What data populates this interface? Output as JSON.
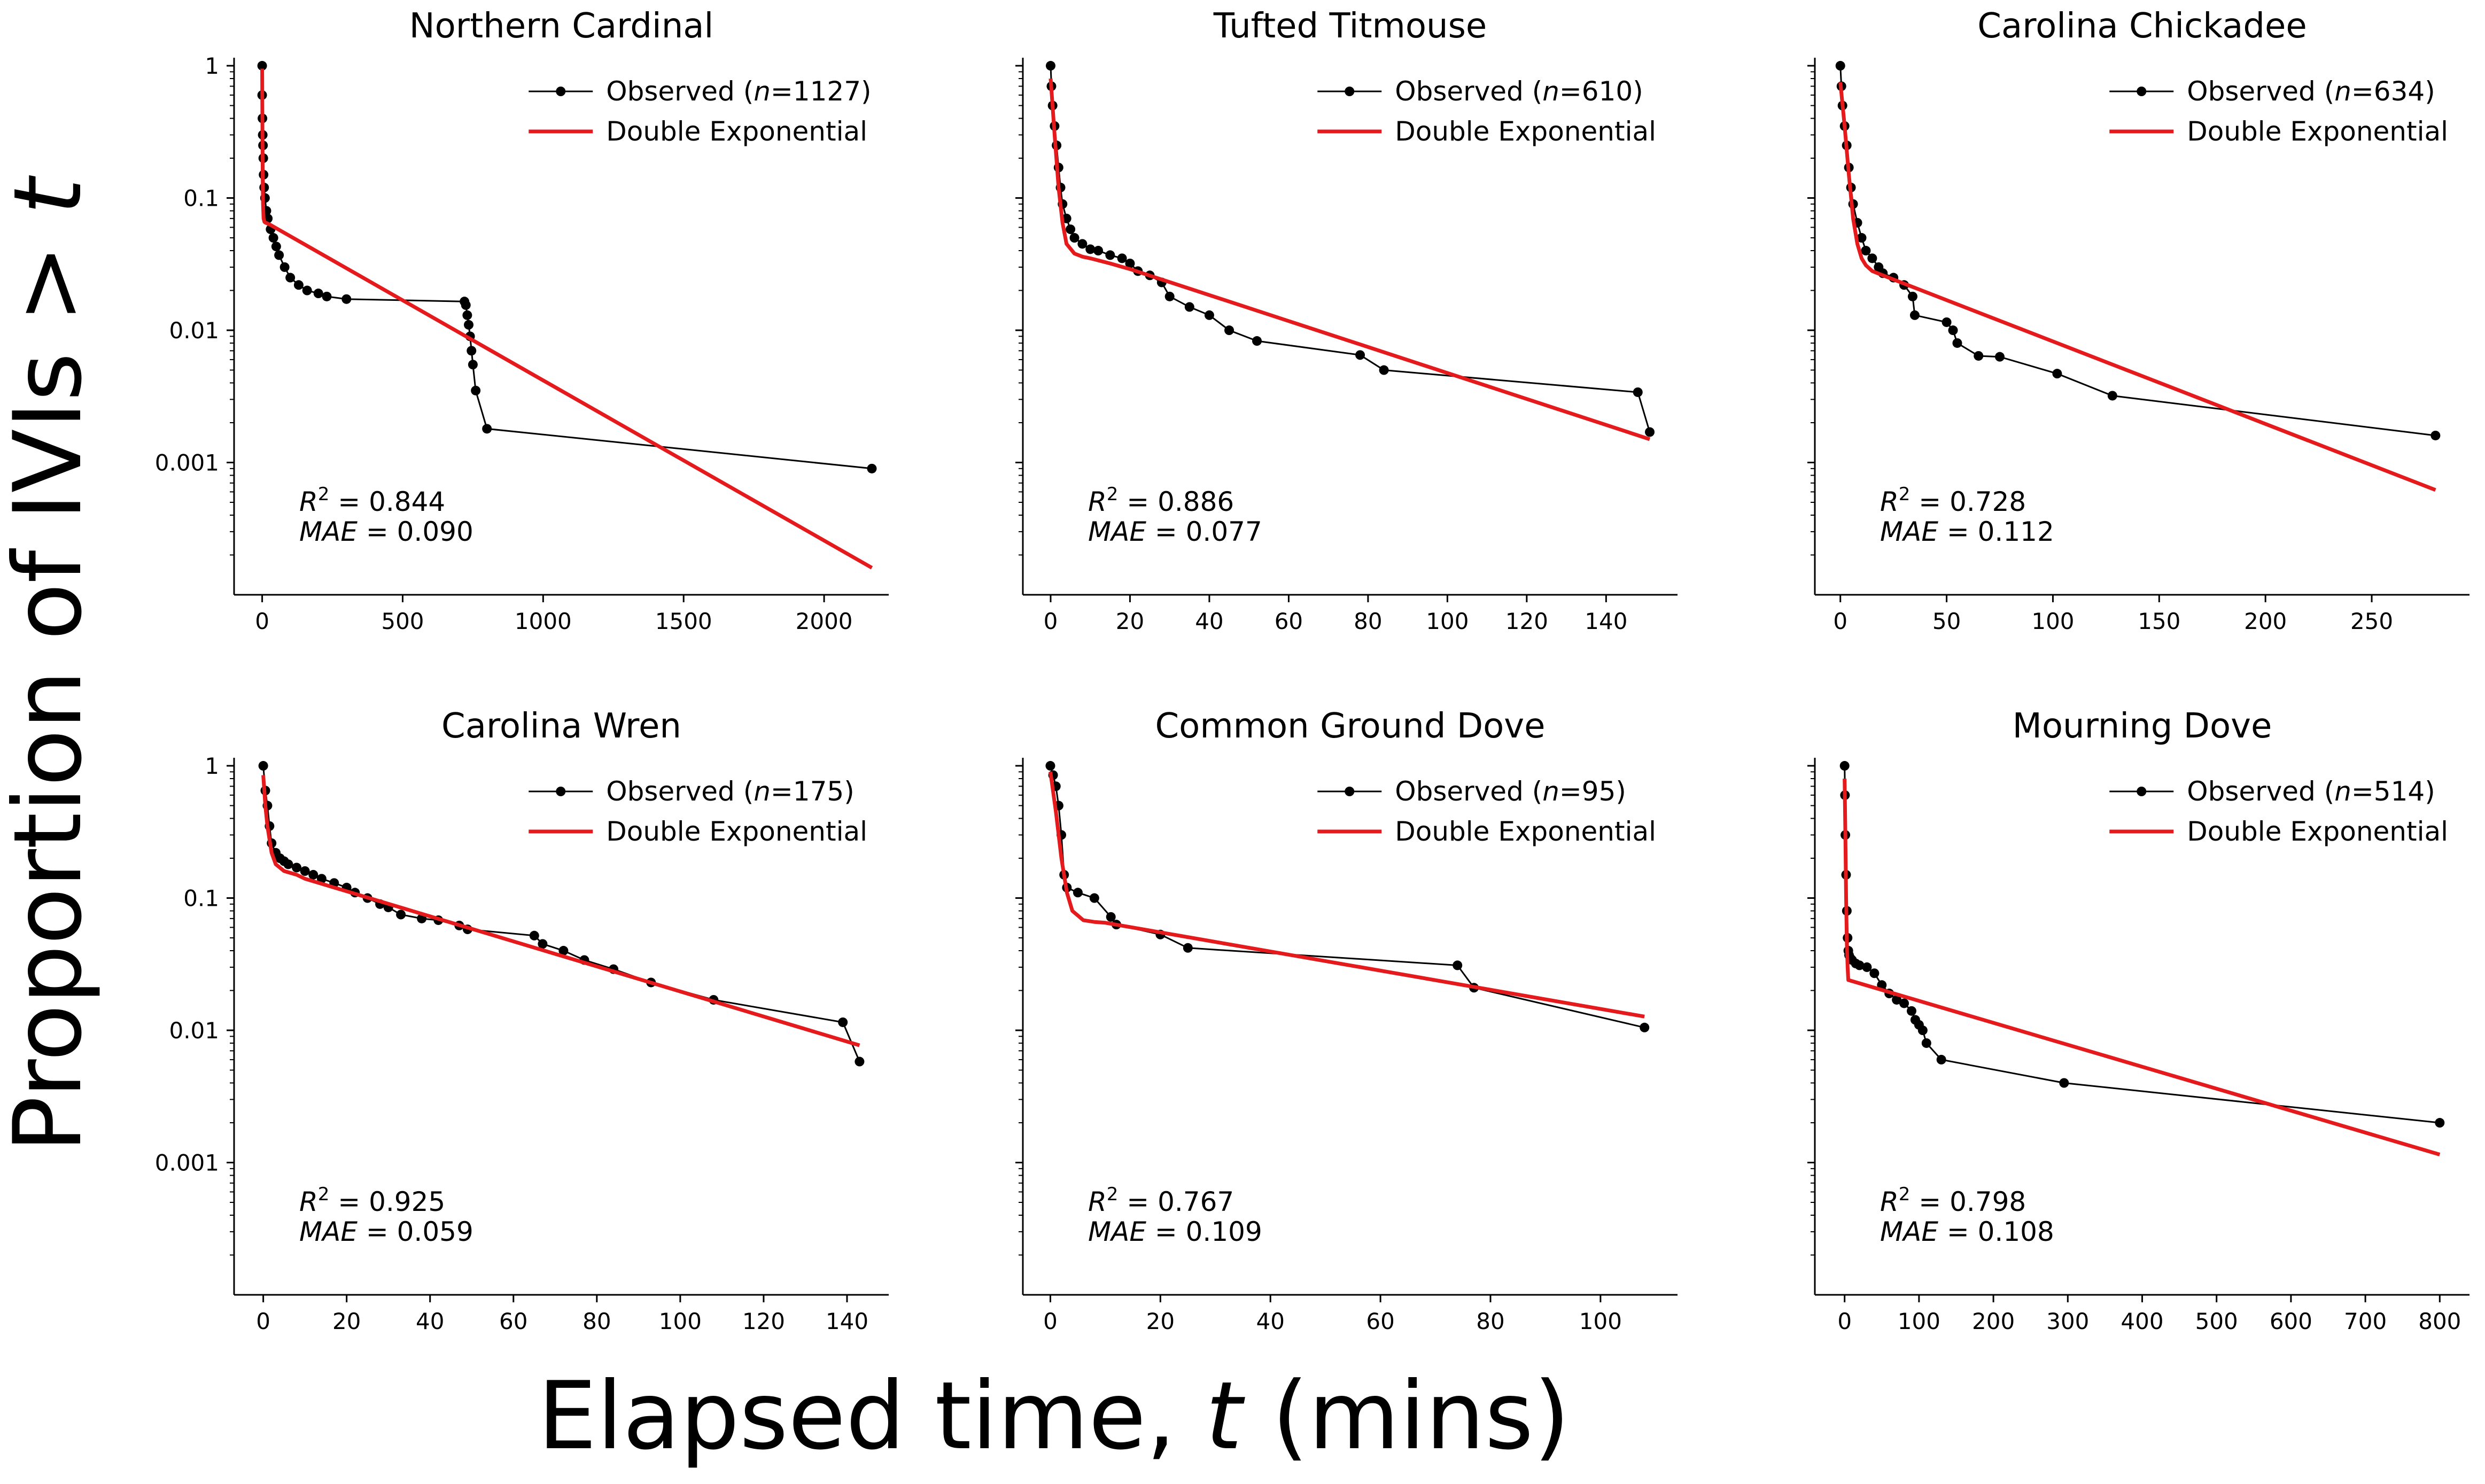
{
  "figure": {
    "xlabel_prefix": "Elapsed time, ",
    "xlabel_var": "t",
    "xlabel_suffix": " (mins)",
    "ylabel_prefix": "Proportion of IVIs > ",
    "ylabel_var": "t",
    "legend_observed_prefix": "Observed (",
    "legend_observed_n": "n",
    "legend_fit_label": "Double Exponential",
    "r2_symbol": "R",
    "r2_superscript": "2",
    "mae_symbol": "MAE",
    "equals": " = ",
    "colors": {
      "observed": "#000000",
      "fit": "#e41a1c"
    }
  },
  "chart_data": [
    {
      "type": "line",
      "title": "Northern Cardinal",
      "n": "1127",
      "r2": "0.844",
      "mae": "0.090",
      "xlim": [
        -100,
        2230
      ],
      "xticks": [
        0,
        500,
        1000,
        1500,
        2000
      ],
      "ylim": [
        0.0001,
        1.15
      ],
      "yscale": "log",
      "yticks": [
        {
          "v": 1,
          "label": "1"
        },
        {
          "v": 0.1,
          "label": "0.1"
        },
        {
          "v": 0.01,
          "label": "0.01"
        },
        {
          "v": 0.001,
          "label": "0.001"
        }
      ],
      "show_ytick_labels": true,
      "series": [
        {
          "name": "Observed",
          "x": [
            0,
            0,
            1,
            2,
            3,
            4,
            5,
            7,
            10,
            15,
            20,
            30,
            40,
            50,
            60,
            80,
            100,
            130,
            160,
            200,
            230,
            300,
            720,
            725,
            730,
            735,
            740,
            745,
            750,
            760,
            800,
            2170
          ],
          "y": [
            1.0,
            0.6,
            0.4,
            0.3,
            0.25,
            0.2,
            0.15,
            0.12,
            0.1,
            0.08,
            0.07,
            0.058,
            0.05,
            0.043,
            0.037,
            0.03,
            0.025,
            0.022,
            0.02,
            0.019,
            0.018,
            0.0172,
            0.0165,
            0.0155,
            0.013,
            0.011,
            0.009,
            0.007,
            0.0055,
            0.0035,
            0.0018,
            0.0009
          ]
        },
        {
          "name": "Double Exponential",
          "x": [
            0,
            0.5,
            1,
            2,
            3,
            5,
            8,
            12,
            20,
            30,
            2170
          ],
          "y": [
            0.95,
            0.55,
            0.33,
            0.14,
            0.09,
            0.07,
            0.066,
            0.065,
            0.064,
            0.0625,
            0.00016
          ]
        }
      ]
    },
    {
      "type": "line",
      "title": "Tufted Titmouse",
      "n": "610",
      "r2": "0.886",
      "mae": "0.077",
      "xlim": [
        -7,
        158
      ],
      "xticks": [
        0,
        20,
        40,
        60,
        80,
        100,
        120,
        140
      ],
      "ylim": [
        0.0001,
        1.15
      ],
      "yscale": "log",
      "yticks": [
        {
          "v": 1,
          "label": ""
        },
        {
          "v": 0.1,
          "label": ""
        },
        {
          "v": 0.01,
          "label": ""
        },
        {
          "v": 0.001,
          "label": ""
        }
      ],
      "show_ytick_labels": false,
      "series": [
        {
          "name": "Observed",
          "x": [
            0,
            0.2,
            0.5,
            1,
            1.5,
            2,
            2.5,
            3,
            4,
            5,
            6,
            8,
            10,
            12,
            15,
            18,
            20,
            22,
            25,
            28,
            30,
            35,
            40,
            45,
            52,
            78,
            84,
            148,
            151
          ],
          "y": [
            1.0,
            0.7,
            0.5,
            0.35,
            0.25,
            0.17,
            0.12,
            0.09,
            0.07,
            0.058,
            0.05,
            0.045,
            0.041,
            0.04,
            0.037,
            0.035,
            0.032,
            0.028,
            0.026,
            0.023,
            0.018,
            0.015,
            0.013,
            0.01,
            0.0083,
            0.0065,
            0.005,
            0.0034,
            0.0017
          ]
        },
        {
          "name": "Double Exponential",
          "x": [
            0,
            1,
            2,
            3,
            4,
            6,
            8,
            10,
            15,
            20,
            151
          ],
          "y": [
            0.8,
            0.3,
            0.12,
            0.065,
            0.045,
            0.038,
            0.036,
            0.035,
            0.032,
            0.029,
            0.0015
          ]
        }
      ]
    },
    {
      "type": "line",
      "title": "Carolina Chickadee",
      "n": "634",
      "r2": "0.728",
      "mae": "0.112",
      "xlim": [
        -12,
        296
      ],
      "xticks": [
        0,
        50,
        100,
        150,
        200,
        250
      ],
      "ylim": [
        0.0001,
        1.15
      ],
      "yscale": "log",
      "yticks": [
        {
          "v": 1,
          "label": ""
        },
        {
          "v": 0.1,
          "label": ""
        },
        {
          "v": 0.01,
          "label": ""
        },
        {
          "v": 0.001,
          "label": ""
        }
      ],
      "show_ytick_labels": false,
      "series": [
        {
          "name": "Observed",
          "x": [
            0,
            0.5,
            1,
            2,
            3,
            4,
            5,
            6,
            8,
            10,
            12,
            15,
            18,
            20,
            25,
            30,
            34,
            35,
            50,
            53,
            55,
            65,
            75,
            102,
            128,
            280
          ],
          "y": [
            1.0,
            0.7,
            0.5,
            0.35,
            0.25,
            0.17,
            0.12,
            0.09,
            0.065,
            0.05,
            0.04,
            0.035,
            0.03,
            0.027,
            0.025,
            0.022,
            0.018,
            0.013,
            0.0115,
            0.01,
            0.008,
            0.0064,
            0.0063,
            0.0047,
            0.0032,
            0.0016
          ]
        },
        {
          "name": "Double Exponential",
          "x": [
            0,
            2,
            4,
            6,
            8,
            10,
            12,
            15,
            20,
            280
          ],
          "y": [
            0.75,
            0.35,
            0.15,
            0.07,
            0.045,
            0.035,
            0.031,
            0.028,
            0.026,
            0.00062
          ]
        }
      ]
    },
    {
      "type": "line",
      "title": "Carolina Wren",
      "n": "175",
      "r2": "0.925",
      "mae": "0.059",
      "xlim": [
        -7,
        150
      ],
      "xticks": [
        0,
        20,
        40,
        60,
        80,
        100,
        120,
        140
      ],
      "ylim": [
        0.0001,
        1.15
      ],
      "yscale": "log",
      "yticks": [
        {
          "v": 1,
          "label": "1"
        },
        {
          "v": 0.1,
          "label": "0.1"
        },
        {
          "v": 0.01,
          "label": "0.01"
        },
        {
          "v": 0.001,
          "label": "0.001"
        }
      ],
      "show_ytick_labels": true,
      "series": [
        {
          "name": "Observed",
          "x": [
            0,
            0.5,
            1,
            1.5,
            2,
            3,
            4,
            5,
            6,
            8,
            10,
            12,
            14,
            17,
            20,
            22,
            25,
            28,
            30,
            33,
            38,
            42,
            47,
            49,
            65,
            67,
            72,
            77,
            84,
            93,
            108,
            139,
            143
          ],
          "y": [
            1.0,
            0.65,
            0.5,
            0.35,
            0.26,
            0.22,
            0.2,
            0.19,
            0.18,
            0.17,
            0.16,
            0.15,
            0.14,
            0.13,
            0.12,
            0.11,
            0.1,
            0.09,
            0.085,
            0.075,
            0.07,
            0.068,
            0.062,
            0.058,
            0.052,
            0.045,
            0.04,
            0.034,
            0.029,
            0.023,
            0.017,
            0.0115,
            0.0058
          ]
        },
        {
          "name": "Double Exponential",
          "x": [
            0,
            0.5,
            1,
            2,
            3,
            5,
            8,
            10,
            143
          ],
          "y": [
            0.85,
            0.5,
            0.35,
            0.22,
            0.18,
            0.16,
            0.15,
            0.14,
            0.0077
          ]
        }
      ]
    },
    {
      "type": "line",
      "title": "Common Ground Dove",
      "n": "95",
      "r2": "0.767",
      "mae": "0.109",
      "xlim": [
        -5,
        114
      ],
      "xticks": [
        0,
        20,
        40,
        60,
        80,
        100
      ],
      "ylim": [
        0.0001,
        1.15
      ],
      "yscale": "log",
      "yticks": [
        {
          "v": 1,
          "label": ""
        },
        {
          "v": 0.1,
          "label": ""
        },
        {
          "v": 0.01,
          "label": ""
        },
        {
          "v": 0.001,
          "label": ""
        }
      ],
      "show_ytick_labels": false,
      "series": [
        {
          "name": "Observed",
          "x": [
            0,
            0.5,
            1,
            1.5,
            2,
            2.5,
            3,
            5,
            8,
            11,
            12,
            20,
            25,
            74,
            77,
            108
          ],
          "y": [
            1.0,
            0.85,
            0.7,
            0.5,
            0.3,
            0.15,
            0.12,
            0.11,
            0.1,
            0.072,
            0.063,
            0.053,
            0.042,
            0.031,
            0.021,
            0.0105
          ]
        },
        {
          "name": "Double Exponential",
          "x": [
            0,
            1,
            2,
            3,
            4,
            6,
            8,
            10,
            108
          ],
          "y": [
            0.9,
            0.45,
            0.2,
            0.11,
            0.08,
            0.068,
            0.066,
            0.065,
            0.0127
          ]
        }
      ]
    },
    {
      "type": "line",
      "title": "Mourning Dove",
      "n": "514",
      "r2": "0.798",
      "mae": "0.108",
      "xlim": [
        -40,
        840
      ],
      "xticks": [
        0,
        100,
        200,
        300,
        400,
        500,
        600,
        700,
        800
      ],
      "ylim": [
        0.0001,
        1.15
      ],
      "yscale": "log",
      "yticks": [
        {
          "v": 1,
          "label": ""
        },
        {
          "v": 0.1,
          "label": ""
        },
        {
          "v": 0.01,
          "label": ""
        },
        {
          "v": 0.001,
          "label": ""
        }
      ],
      "show_ytick_labels": false,
      "series": [
        {
          "name": "Observed",
          "x": [
            0,
            0.5,
            1,
            2,
            3,
            4,
            5,
            6,
            8,
            10,
            15,
            20,
            30,
            40,
            50,
            60,
            70,
            80,
            90,
            95,
            100,
            105,
            110,
            130,
            295,
            800
          ],
          "y": [
            1.0,
            0.6,
            0.3,
            0.15,
            0.08,
            0.05,
            0.04,
            0.037,
            0.035,
            0.034,
            0.032,
            0.031,
            0.03,
            0.027,
            0.022,
            0.019,
            0.017,
            0.016,
            0.014,
            0.012,
            0.011,
            0.01,
            0.008,
            0.006,
            0.004,
            0.002
          ]
        },
        {
          "name": "Double Exponential",
          "x": [
            0,
            1,
            2,
            3,
            4,
            5,
            800
          ],
          "y": [
            0.8,
            0.3,
            0.1,
            0.045,
            0.03,
            0.024,
            0.00115
          ]
        }
      ]
    }
  ]
}
